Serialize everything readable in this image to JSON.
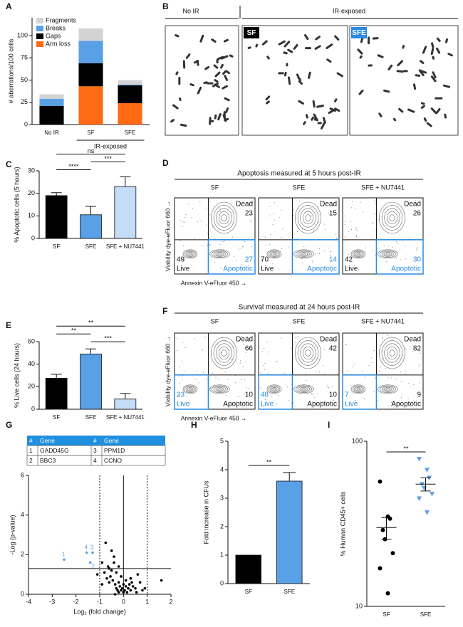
{
  "chart_data": [
    {
      "panel": "A",
      "type": "bar",
      "stacked": true,
      "ylabel": "# aberrations/100 cells",
      "categories": [
        "No IR",
        "SF",
        "SFE"
      ],
      "group_label": "IR-exposed",
      "group": [
        "SF",
        "SFE"
      ],
      "ylim": [
        0,
        120
      ],
      "yticks": [
        0,
        25,
        50,
        75,
        100
      ],
      "legend": "top-left",
      "series": [
        {
          "name": "Arm loss",
          "color": "#ff6a13",
          "values": [
            0,
            43,
            24
          ]
        },
        {
          "name": "Gaps",
          "color": "#000000",
          "values": [
            21,
            26,
            20
          ]
        },
        {
          "name": "Breaks",
          "color": "#5aa0e6",
          "values": [
            8,
            25,
            1
          ]
        },
        {
          "name": "Fragments",
          "color": "#d3d3d3",
          "values": [
            5,
            14,
            5
          ]
        }
      ]
    },
    {
      "panel": "C",
      "type": "bar",
      "ylabel": "% Apoptotic cells (5 hours)",
      "categories": [
        "SF",
        "SFE",
        "SFE + NU7441"
      ],
      "colors": [
        "#000000",
        "#5aa0e6",
        "#c5dcf7"
      ],
      "values": [
        19,
        10.5,
        23
      ],
      "errors": [
        1.3,
        3.7,
        4.3
      ],
      "ylim": [
        0,
        30
      ],
      "yticks": [
        0,
        10,
        20,
        30
      ],
      "significance": [
        {
          "label": "ns",
          "between": [
            "SF",
            "SFE + NU7441"
          ]
        },
        {
          "label": "***",
          "between": [
            "SFE",
            "SFE + NU7441"
          ]
        },
        {
          "label": "****",
          "between": [
            "SF",
            "SFE"
          ]
        }
      ]
    },
    {
      "panel": "E",
      "type": "bar",
      "ylabel": "% Live cells (24 hours)",
      "categories": [
        "SF",
        "SFE",
        "SFE + NU7441"
      ],
      "colors": [
        "#000000",
        "#5aa0e6",
        "#c5dcf7"
      ],
      "values": [
        27.5,
        49,
        9
      ],
      "errors": [
        3.5,
        4.5,
        5
      ],
      "ylim": [
        0,
        60
      ],
      "yticks": [
        0,
        20,
        40,
        60
      ],
      "significance": [
        {
          "label": "**",
          "between": [
            "SF",
            "SFE + NU7441"
          ]
        },
        {
          "label": "**",
          "between": [
            "SF",
            "SFE"
          ]
        },
        {
          "label": "***",
          "between": [
            "SFE",
            "SFE + NU7441"
          ]
        }
      ]
    },
    {
      "panel": "G",
      "type": "scatter",
      "xlabel": "Log₂ (fold change)",
      "ylabel": "-Log (p-value)",
      "xlim": [
        -4,
        2
      ],
      "xticks": [
        -4,
        -3,
        -2,
        -1,
        0,
        1,
        2
      ],
      "ylim": [
        0,
        6
      ],
      "yticks": [
        0,
        2,
        4,
        6
      ],
      "threshold_y": 1.3,
      "dashed_x": [
        -1,
        1
      ],
      "zero_line_x": 0,
      "color": "#000000",
      "x": [
        -0.9,
        -0.8,
        -0.75,
        -0.6,
        -0.55,
        -0.5,
        -0.45,
        -0.4,
        -0.35,
        -0.3,
        -0.3,
        -0.25,
        -0.2,
        -0.2,
        -0.15,
        -0.1,
        -0.1,
        -0.05,
        0,
        0,
        0.05,
        0.1,
        0.1,
        0.15,
        0.2,
        0.25,
        0.3,
        0.35,
        0.4,
        0.5,
        0.55,
        0.6,
        0.7,
        0.8,
        0.9,
        -0.7,
        -0.65,
        -0.4,
        -0.2,
        0.3,
        -1.1,
        -0.9,
        -0.5,
        -0.35,
        -0.6,
        1.6
      ],
      "y": [
        1.6,
        1.1,
        2.6,
        1.3,
        0.9,
        2.2,
        0.7,
        1.6,
        0.5,
        0.3,
        1.1,
        0.2,
        0.6,
        0.1,
        0.4,
        0.2,
        0.9,
        0.3,
        0.1,
        0.5,
        0.2,
        0.4,
        0.7,
        0.1,
        0.3,
        0.5,
        0.2,
        0.6,
        0.4,
        0.3,
        0.1,
        1.0,
        0.6,
        0.2,
        0.3,
        0.8,
        1.4,
        1.9,
        1.4,
        0.8,
        1.0,
        0.5,
        1.2,
        0.0,
        0.6,
        0.7
      ],
      "highlight": {
        "color": "#5aa0e6",
        "labels": [
          "1",
          "2",
          "3",
          "4"
        ],
        "x": [
          -2.5,
          -1.4,
          -1.3,
          -1.55
        ],
        "y": [
          1.75,
          1.6,
          2.1,
          2.1
        ]
      }
    },
    {
      "panel": "H",
      "type": "bar",
      "ylabel": "Fold increase in CFUs",
      "categories": [
        "SF",
        "SFE"
      ],
      "colors": [
        "#000000",
        "#5aa0e6"
      ],
      "values": [
        1,
        3.6
      ],
      "errors": [
        null,
        0.3
      ],
      "ylim": [
        0,
        5
      ],
      "yticks": [
        0,
        1,
        2,
        3,
        4,
        5
      ],
      "significance": [
        {
          "label": "**",
          "between": [
            "SF",
            "SFE"
          ]
        }
      ]
    },
    {
      "panel": "I",
      "type": "dot",
      "ylabel": "% Human CD45+ cells",
      "log_y": true,
      "categories": [
        "SF",
        "SFE"
      ],
      "colors": [
        "#000000",
        "#5aa0e6"
      ],
      "markers": [
        "circle",
        "triangle"
      ],
      "points": [
        [
          57,
          35,
          34,
          29,
          25.5,
          21,
          17,
          12
        ],
        [
          78,
          67,
          60,
          55,
          52,
          48,
          45,
          37
        ]
      ],
      "means": [
        30,
        55
      ],
      "sem": [
        4.5,
        5
      ],
      "ylim": [
        10,
        100
      ],
      "yticks": [
        10,
        100
      ],
      "significance": [
        {
          "label": "**",
          "between": [
            "SF",
            "SFE"
          ]
        }
      ]
    }
  ],
  "metaphase": {
    "panel": "B",
    "headers": [
      "No IR",
      "IR-exposed"
    ],
    "tags": [
      "SF",
      "SFE"
    ]
  },
  "flow": [
    {
      "panel": "D",
      "title": "Apoptosis measured at 5 hours post-IR",
      "highlight": "apoptotic",
      "x_label": "Annexin V-eFluor 450 →",
      "y_label": "Viability dye-eFluor 660 →",
      "quadrants": {
        "dead": "Dead",
        "live": "Live",
        "apoptotic": "Apoptotic"
      },
      "plots": [
        {
          "name": "SF",
          "dead": 23,
          "live": 49,
          "apoptotic": 27
        },
        {
          "name": "SFE",
          "dead": 15,
          "live": 70,
          "apoptotic": 14
        },
        {
          "name": "SFE + NU7441",
          "dead": 26,
          "live": 42,
          "apoptotic": 30
        }
      ]
    },
    {
      "panel": "F",
      "title": "Survival measured at 24 hours post-IR",
      "highlight": "live",
      "x_label": "Annexin V-eFluor 450 →",
      "y_label": "Viability dye-eFluor 660 →",
      "quadrants": {
        "dead": "Dead",
        "live": "Live",
        "apoptotic": "Apoptotic"
      },
      "plots": [
        {
          "name": "SF",
          "dead": 66,
          "live": 23,
          "apoptotic": 10
        },
        {
          "name": "SFE",
          "dead": 42,
          "live": 48,
          "apoptotic": 10
        },
        {
          "name": "SFE + NU7441",
          "dead": 82,
          "live": 7,
          "apoptotic": 9
        }
      ]
    }
  ],
  "gene_table": {
    "header": [
      "#",
      "Gene",
      "#",
      "Gene"
    ],
    "rows": [
      [
        1,
        "GADD45G",
        3,
        "PPM1D"
      ],
      [
        2,
        "BBC3",
        4,
        "CCNO"
      ]
    ]
  }
}
